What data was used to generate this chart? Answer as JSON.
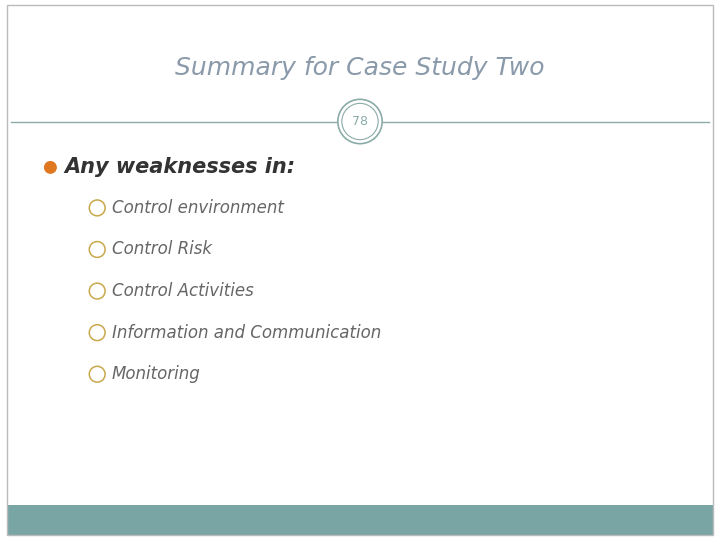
{
  "title": "Summary for Case Study Two",
  "slide_number": "78",
  "title_color": "#8a9aaa",
  "title_fontsize": 18,
  "divider_color": "#8aaba8",
  "slide_number_color": "#8aaba8",
  "slide_number_fontsize": 9,
  "bullet_main": "Any weaknesses in:",
  "bullet_main_color": "#333333",
  "bullet_main_fontsize": 15,
  "bullet_dot_color": "#e07820",
  "sub_bullets": [
    "Control environment",
    "Control Risk",
    "Control Activities",
    "Information and Communication",
    "Monitoring"
  ],
  "sub_bullet_color": "#666666",
  "sub_bullet_fontsize": 12,
  "sub_bullet_circle_color": "#c8a84b",
  "background_color": "#ffffff",
  "footer_color": "#7aa5a5",
  "border_color": "#bbbbbb"
}
